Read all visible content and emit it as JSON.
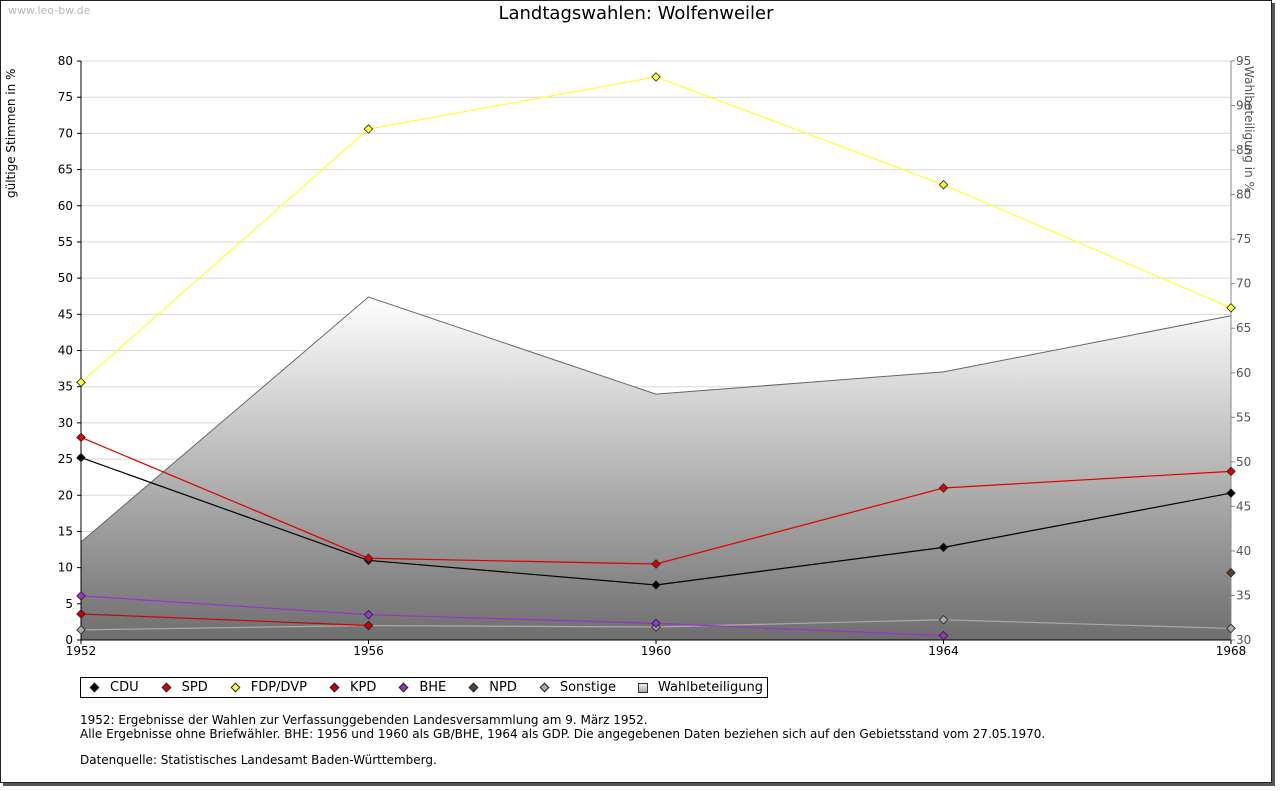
{
  "watermark": "www.leo-bw.de",
  "chart_data": {
    "type": "line",
    "title": "Landtagswahlen: Wolfenweiler",
    "ylabel": "gültige Stimmen in %",
    "y2label": "Wahlbeteiligung in %",
    "categories": [
      "1952",
      "1956",
      "1960",
      "1964",
      "1968"
    ],
    "ylim": [
      0,
      80
    ],
    "yticks": [
      0,
      5,
      10,
      15,
      20,
      25,
      30,
      35,
      40,
      45,
      50,
      55,
      60,
      65,
      70,
      75,
      80
    ],
    "y2lim": [
      30,
      95
    ],
    "y2ticks": [
      30,
      35,
      40,
      45,
      50,
      55,
      60,
      65,
      70,
      75,
      80,
      85,
      90,
      95
    ],
    "grid": true,
    "series": [
      {
        "name": "CDU",
        "color": "#000000",
        "values": [
          25.2,
          11.0,
          7.6,
          12.8,
          20.3
        ]
      },
      {
        "name": "SPD",
        "color": "#e00000",
        "values": [
          28.0,
          11.3,
          10.5,
          21.0,
          23.3
        ]
      },
      {
        "name": "FDP/DVP",
        "color": "#ffff33",
        "values": [
          35.6,
          70.6,
          77.8,
          62.9,
          45.9
        ]
      },
      {
        "name": "KPD",
        "color": "#cc0000",
        "values": [
          3.6,
          2.0,
          null,
          null,
          null
        ]
      },
      {
        "name": "BHE",
        "color": "#9933cc",
        "values": [
          6.1,
          3.5,
          2.3,
          0.6,
          null
        ]
      },
      {
        "name": "NPD",
        "color": "#5a4030",
        "values": [
          null,
          null,
          null,
          null,
          9.3
        ]
      },
      {
        "name": "Sonstige",
        "color": "#aaaaaa",
        "values": [
          1.4,
          2.0,
          1.8,
          2.8,
          1.6
        ]
      }
    ],
    "area": {
      "name": "Wahlbeteiligung",
      "axis": "right",
      "values": [
        41.0,
        68.5,
        57.6,
        60.1,
        66.4
      ]
    },
    "legend_position": "bottom-left"
  },
  "notes": {
    "line1": "1952: Ergebnisse der Wahlen zur Verfassunggebenden Landesversammlung am 9. März 1952.",
    "line2": "Alle Ergebnisse ohne Briefwähler. BHE: 1956 und 1960 als GB/BHE, 1964 als GDP. Die angegebenen Daten beziehen sich auf den Gebietsstand vom 27.05.1970.",
    "source": "Datenquelle: Statistisches Landesamt Baden-Württemberg."
  }
}
